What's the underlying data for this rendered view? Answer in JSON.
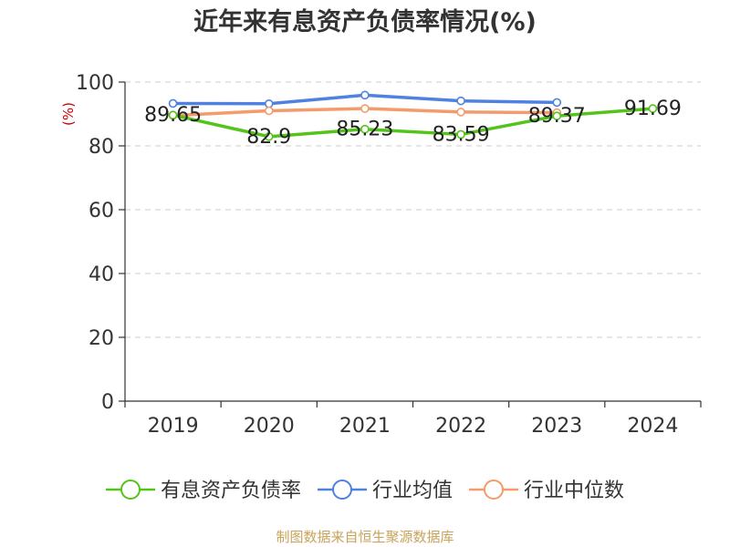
{
  "chart_data": {
    "type": "line",
    "title": "近年来有息资产负债率情况(%)",
    "ylabel": "(%)",
    "xlabel": "",
    "categories": [
      "2019",
      "2020",
      "2021",
      "2022",
      "2023",
      "2024"
    ],
    "ylim": [
      0,
      100
    ],
    "yticks": [
      0,
      20,
      40,
      60,
      80,
      100
    ],
    "grid": true,
    "legend_position": "bottom",
    "series": [
      {
        "name": "有息资产负债率",
        "color": "#52c41a",
        "values": [
          89.65,
          82.9,
          85.23,
          83.59,
          89.37,
          91.69
        ],
        "labels": [
          "89.65",
          "82.9",
          "85.23",
          "83.59",
          "89.37",
          "91.69"
        ]
      },
      {
        "name": "行业均值",
        "color": "#4f81e0",
        "values": [
          93.3,
          93.2,
          95.9,
          94.1,
          93.6,
          null
        ]
      },
      {
        "name": "行业中位数",
        "color": "#f59a6a",
        "values": [
          89.5,
          91.0,
          91.7,
          90.6,
          90.4,
          null
        ]
      }
    ],
    "source": "制图数据来自恒生聚源数据库"
  }
}
